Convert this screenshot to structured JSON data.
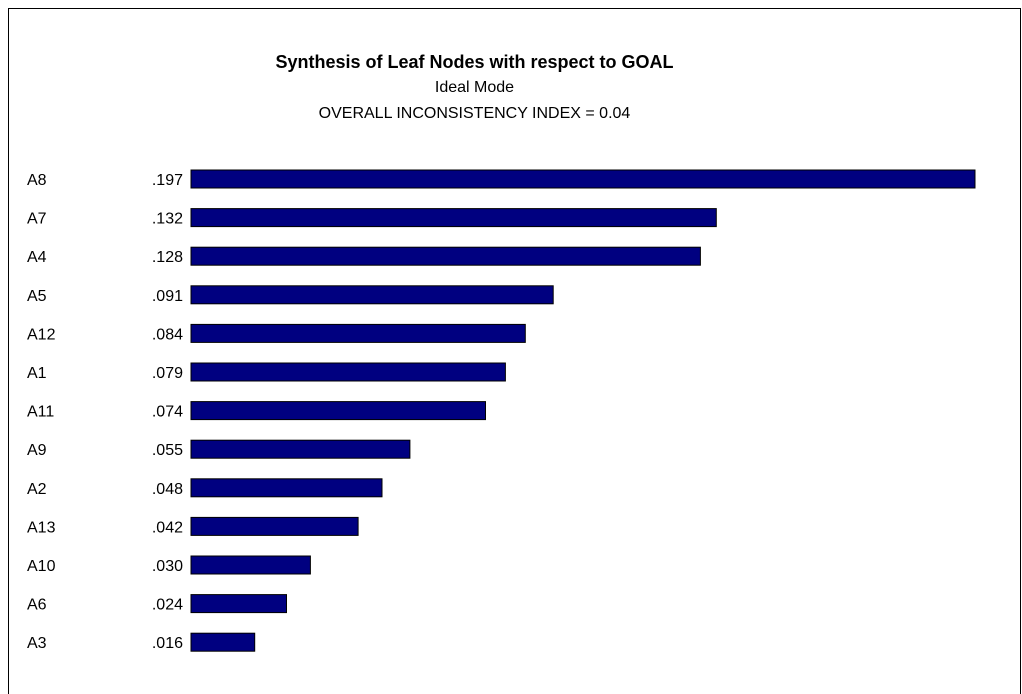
{
  "colors": {
    "bar": "#000080",
    "text": "#000000",
    "background": "#ffffff"
  },
  "header": {
    "title": "Synthesis of Leaf Nodes with respect to GOAL",
    "subtitle": "Ideal Mode",
    "inconsistency_label": "OVERALL INCONSISTENCY INDEX =  0.04"
  },
  "chart_data": {
    "type": "bar",
    "orientation": "horizontal",
    "title": "Synthesis of Leaf Nodes with respect to GOAL",
    "subtitle": "Ideal Mode",
    "categories": [
      "A8",
      "A7",
      "A4",
      "A5",
      "A12",
      "A1",
      "A11",
      "A9",
      "A2",
      "A13",
      "A10",
      "A6",
      "A3"
    ],
    "values": [
      0.197,
      0.132,
      0.128,
      0.091,
      0.084,
      0.079,
      0.074,
      0.055,
      0.048,
      0.042,
      0.03,
      0.024,
      0.016
    ],
    "value_labels": [
      ".197",
      ".132",
      ".128",
      ".091",
      ".084",
      ".079",
      ".074",
      ".055",
      ".048",
      ".042",
      ".030",
      ".024",
      ".016"
    ],
    "xlim": [
      0,
      0.197
    ],
    "grid": false,
    "legend": "none"
  }
}
